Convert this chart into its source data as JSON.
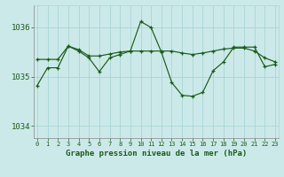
{
  "line1_x": [
    0,
    1,
    2,
    3,
    4,
    5,
    6,
    7,
    8,
    9,
    10,
    11,
    12,
    13,
    14,
    15,
    16,
    17,
    18,
    19,
    20,
    21,
    22,
    23
  ],
  "line1_y": [
    1034.82,
    1035.18,
    1035.18,
    1035.62,
    1035.52,
    1035.38,
    1035.1,
    1035.38,
    1035.45,
    1035.52,
    1036.12,
    1036.0,
    1035.5,
    1034.88,
    1034.62,
    1034.6,
    1034.68,
    1035.12,
    1035.3,
    1035.6,
    1035.6,
    1035.6,
    1035.2,
    1035.25
  ],
  "line2_x": [
    0,
    1,
    2,
    3,
    4,
    5,
    6,
    7,
    8,
    9,
    10,
    11,
    12,
    13,
    14,
    15,
    16,
    17,
    18,
    19,
    20,
    21,
    22,
    23
  ],
  "line2_y": [
    1035.35,
    1035.35,
    1035.35,
    1035.62,
    1035.55,
    1035.42,
    1035.42,
    1035.46,
    1035.5,
    1035.52,
    1035.52,
    1035.52,
    1035.52,
    1035.52,
    1035.48,
    1035.45,
    1035.48,
    1035.52,
    1035.56,
    1035.58,
    1035.58,
    1035.52,
    1035.38,
    1035.3
  ],
  "bg_color": "#cce9e9",
  "grid_color_major": "#aad4d4",
  "grid_color_minor": "#bbdddd",
  "line_color": "#1a5c1a",
  "marker": "+",
  "title": "Graphe pression niveau de la mer (hPa)",
  "xlabel_ticks": [
    0,
    1,
    2,
    3,
    4,
    5,
    6,
    7,
    8,
    9,
    10,
    11,
    12,
    13,
    14,
    15,
    16,
    17,
    18,
    19,
    20,
    21,
    22,
    23
  ],
  "yticks": [
    1034,
    1035,
    1036
  ],
  "ylim": [
    1033.75,
    1036.45
  ],
  "xlim": [
    -0.3,
    23.3
  ],
  "figsize": [
    3.2,
    2.0
  ],
  "dpi": 100
}
